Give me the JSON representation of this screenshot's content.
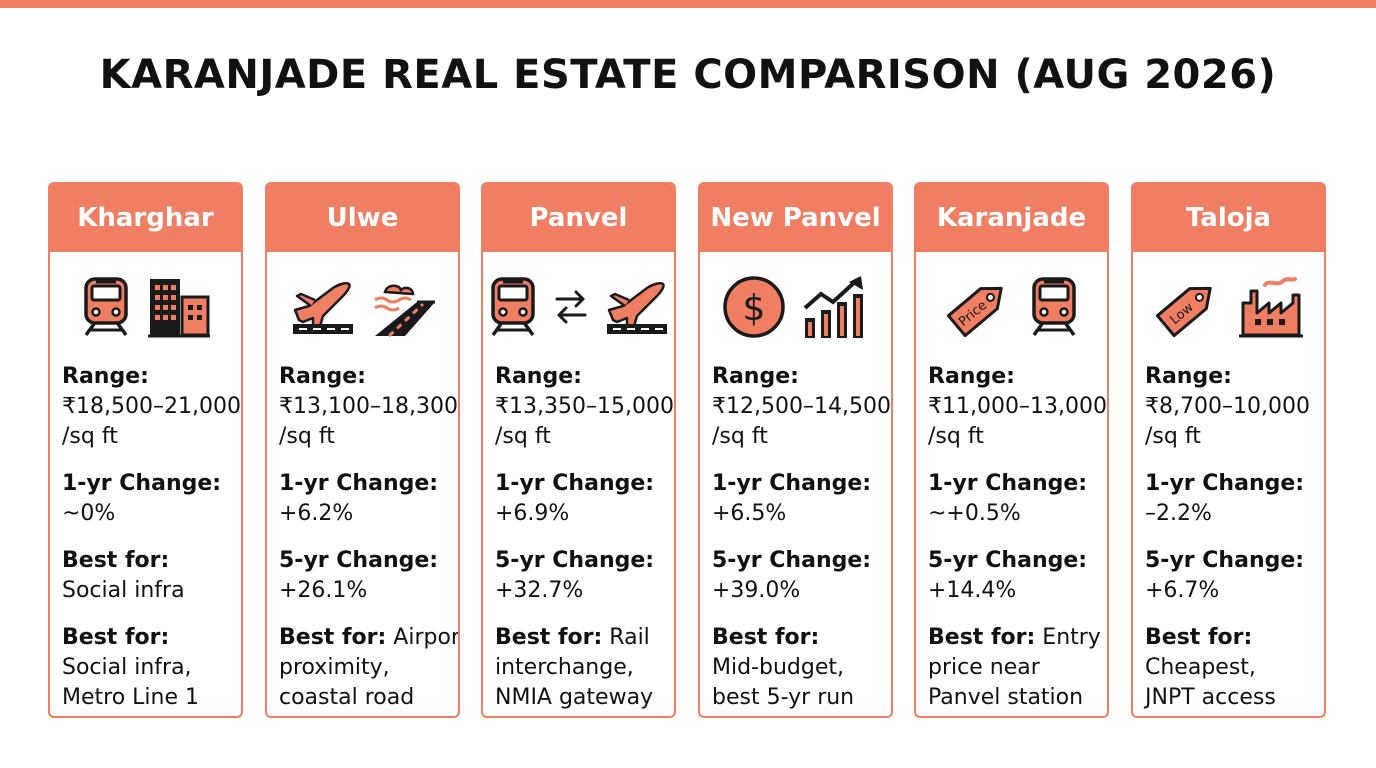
{
  "title": "KARANJADE REAL ESTATE COMPARISON (AUG 2026)",
  "colors": {
    "accent": "#ef7e62",
    "icon_fill": "#ef7e62",
    "icon_stroke": "#1a1a1a",
    "text": "#111111"
  },
  "cards": [
    {
      "name": "Kharghar",
      "icons": [
        "train-icon",
        "buildings-icon"
      ],
      "range_label": "Range:",
      "range_value": "₹18,500–21,000",
      "unit": "/sq ft",
      "one_yr_label": "1-yr Change:",
      "one_yr_value": "~0%",
      "second_label": "Best for:",
      "second_value": "Social infra",
      "best_label": "Best for:",
      "best_line1": "Social infra,",
      "best_line2": "Metro Line 1"
    },
    {
      "name": "Ulwe",
      "icons": [
        "airplane-icon",
        "coastal-road-icon"
      ],
      "range_label": "Range:",
      "range_value": "₹13,100–18,300",
      "unit": "/sq ft",
      "one_yr_label": "1-yr Change:",
      "one_yr_value": "+6.2%",
      "second_label": "5-yr Change:",
      "second_value": "+26.1%",
      "best_label": "Best for:",
      "best_inline": " Airport",
      "best_line1": "proximity,",
      "best_line2": "coastal road"
    },
    {
      "name": "Panvel",
      "icons": [
        "train-icon",
        "interchange-arrows-icon",
        "airplane-icon"
      ],
      "range_label": "Range:",
      "range_value": "₹13,350–15,000",
      "unit": "/sq ft",
      "one_yr_label": "1-yr Change:",
      "one_yr_value": "+6.9%",
      "second_label": "5-yr Change:",
      "second_value": "+32.7%",
      "best_label": "Best for:",
      "best_inline": " Rail",
      "best_line1": "interchange,",
      "best_line2": "NMIA gateway"
    },
    {
      "name": "New Panvel",
      "icons": [
        "dollar-coin-icon",
        "growth-chart-icon"
      ],
      "range_label": "Range:",
      "range_value": "₹12,500–14,500",
      "unit": "/sq ft",
      "one_yr_label": "1-yr Change:",
      "one_yr_value": "+6.5%",
      "second_label": "5-yr Change:",
      "second_value": "+39.0%",
      "best_label": "Best for:",
      "best_line1": "Mid-budget,",
      "best_line2": "best 5-yr run"
    },
    {
      "name": "Karanjade",
      "icons": [
        "price-tag-icon",
        "train-icon"
      ],
      "tag_text": "Price",
      "range_label": "Range:",
      "range_value": "₹11,000–13,000",
      "unit": "/sq ft",
      "one_yr_label": "1-yr Change:",
      "one_yr_value": "~+0.5%",
      "second_label": "5-yr Change:",
      "second_value": "+14.4%",
      "best_label": "Best for:",
      "best_inline": " Entry",
      "best_line1": "price near",
      "best_line2": "Panvel station"
    },
    {
      "name": "Taloja",
      "icons": [
        "price-tag-icon",
        "factory-icon"
      ],
      "tag_text": "Low",
      "range_label": "Range:",
      "range_value": "₹8,700–10,000",
      "unit": "/sq ft",
      "one_yr_label": "1-yr Change:",
      "one_yr_value": "–2.2%",
      "second_label": "5-yr Change:",
      "second_value": "+6.7%",
      "best_label": "Best for:",
      "best_line1": "Cheapest,",
      "best_line2": "JNPT access"
    }
  ]
}
